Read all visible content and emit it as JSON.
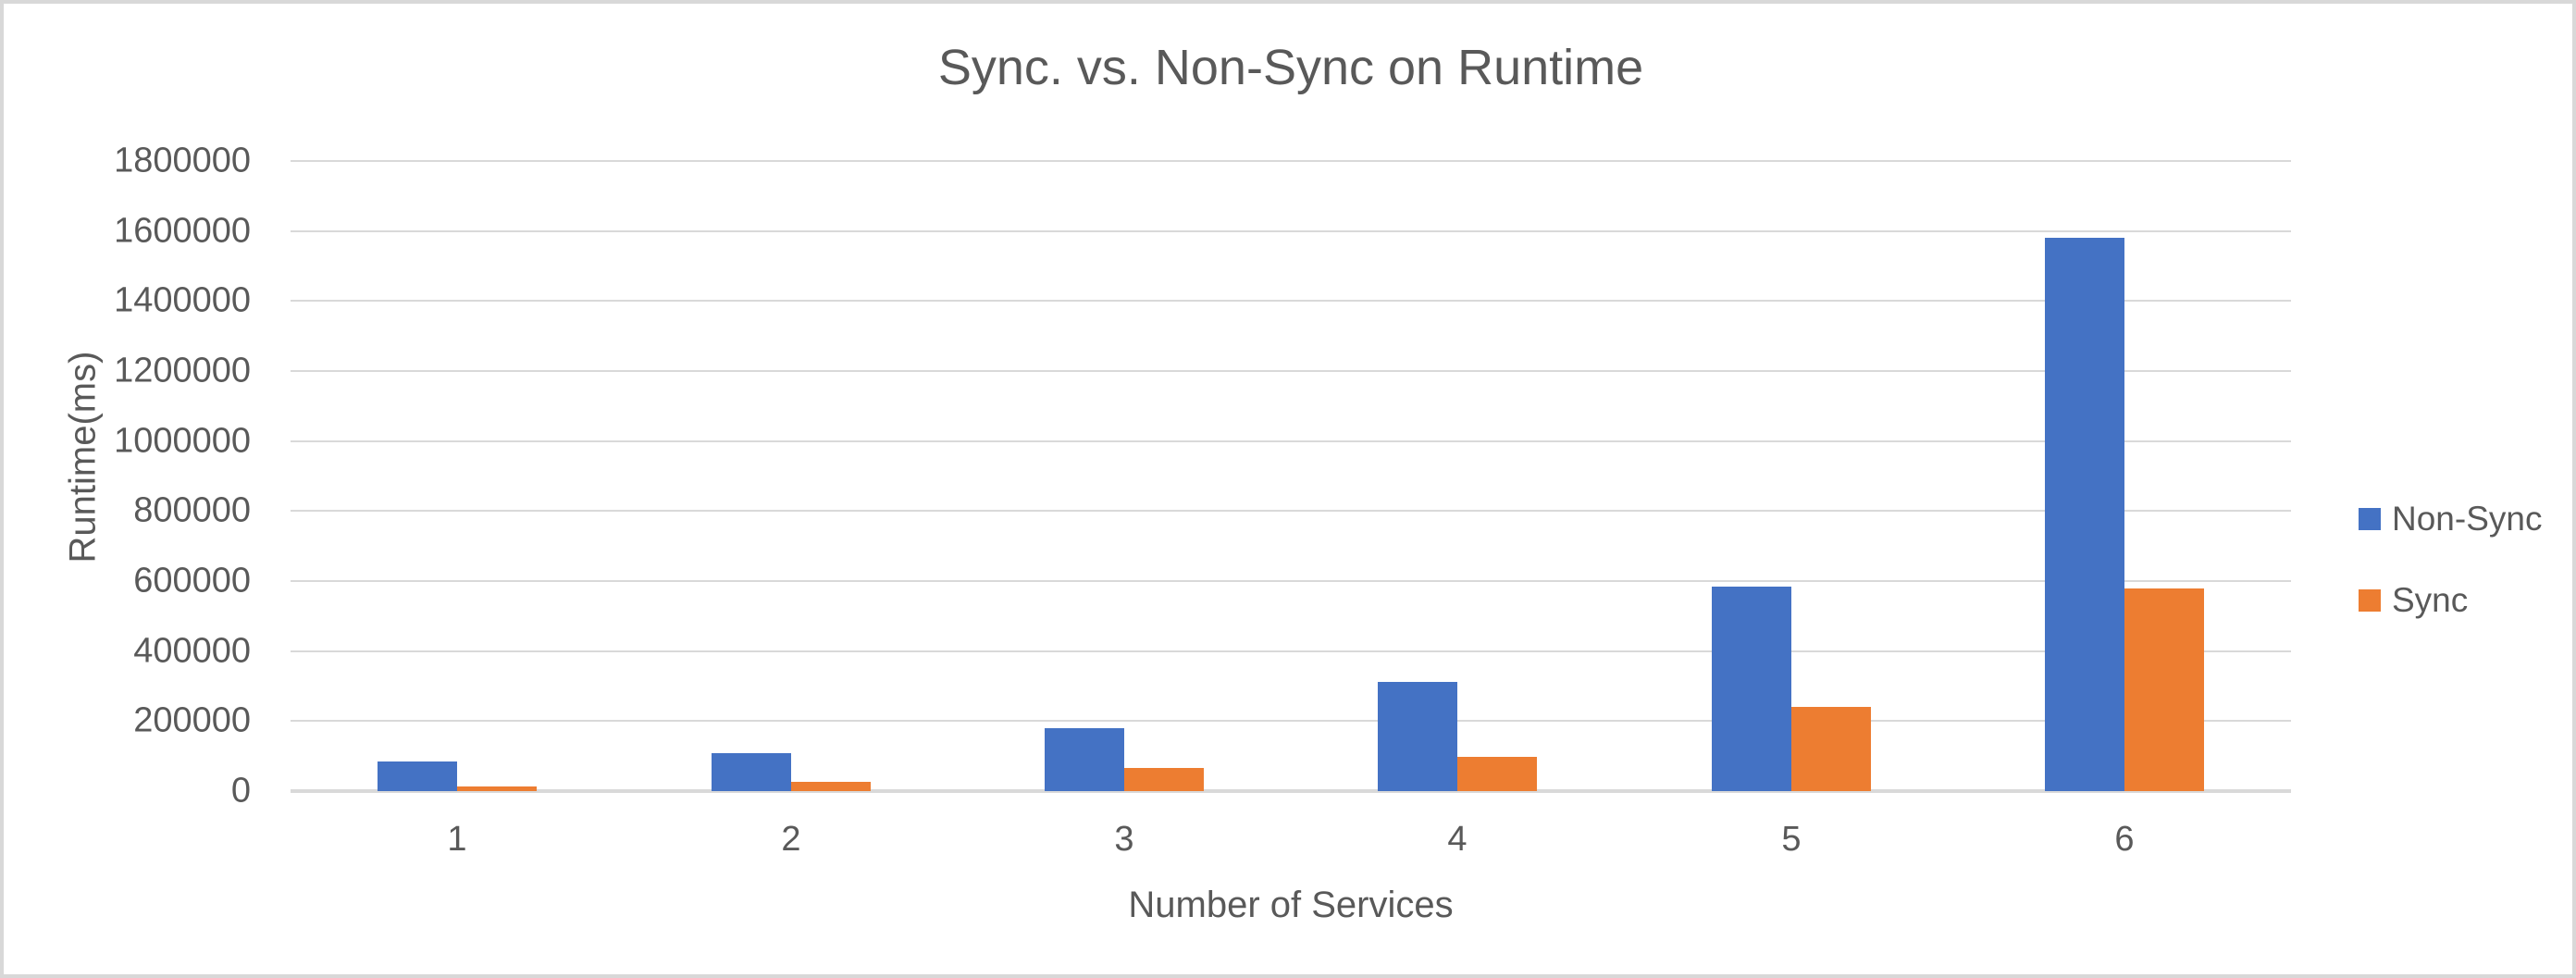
{
  "chart_data": {
    "type": "bar",
    "title": "Sync. vs. Non-Sync on Runtime",
    "xlabel": "Number of Services",
    "ylabel": "Runtime(ms)",
    "categories": [
      "1",
      "2",
      "3",
      "4",
      "5",
      "6"
    ],
    "series": [
      {
        "name": "Non-Sync",
        "color": "#4472C4",
        "values": [
          85000,
          108000,
          180000,
          313000,
          585000,
          1580000
        ]
      },
      {
        "name": "Sync",
        "color": "#ED7D31",
        "values": [
          12000,
          27000,
          65000,
          99000,
          240000,
          578000
        ]
      }
    ],
    "ylim": [
      0,
      1800000
    ],
    "ytick_step": 200000,
    "ytick_labels": [
      "0",
      "200000",
      "400000",
      "600000",
      "800000",
      "1000000",
      "1200000",
      "1400000",
      "1600000",
      "1800000"
    ],
    "grid": true,
    "legend_position": "right",
    "colors": {
      "grid": "#D9D9D9",
      "axis_line": "#D9D9D9",
      "text": "#595959",
      "background": "#FFFFFF",
      "border": "#D8D8D8"
    }
  }
}
